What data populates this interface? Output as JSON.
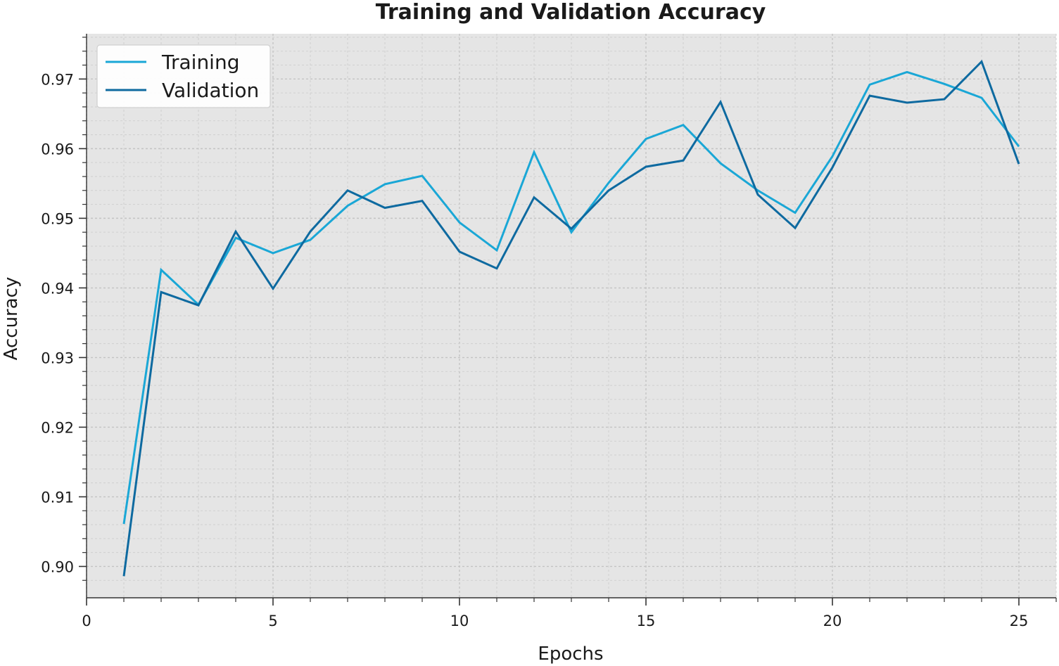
{
  "chart_data": {
    "type": "line",
    "title": "Training and Validation Accuracy",
    "xlabel": "Epochs",
    "ylabel": "Accuracy",
    "xlim": [
      0,
      26
    ],
    "ylim": [
      0.8955,
      0.9765
    ],
    "xticks": [
      0,
      5,
      10,
      15,
      20,
      25
    ],
    "xtick_labels": [
      "0",
      "5",
      "10",
      "15",
      "20",
      "25"
    ],
    "yticks": [
      0.9,
      0.91,
      0.92,
      0.93,
      0.94,
      0.95,
      0.96,
      0.97
    ],
    "ytick_labels": [
      "0.90",
      "0.91",
      "0.92",
      "0.93",
      "0.94",
      "0.95",
      "0.96",
      "0.97"
    ],
    "grid": true,
    "background": "#e5e5e5",
    "legend_position": "upper-left",
    "x": [
      1,
      2,
      3,
      4,
      5,
      6,
      7,
      8,
      9,
      10,
      11,
      12,
      13,
      14,
      15,
      16,
      17,
      18,
      19,
      20,
      21,
      22,
      23,
      24,
      25
    ],
    "series": [
      {
        "name": "Training",
        "color": "#1aa7d6",
        "values": [
          0.9061,
          0.9426,
          0.9376,
          0.9472,
          0.945,
          0.9469,
          0.9518,
          0.9549,
          0.9561,
          0.9494,
          0.9454,
          0.9595,
          0.948,
          0.9551,
          0.9614,
          0.9634,
          0.9579,
          0.954,
          0.9508,
          0.9589,
          0.9692,
          0.971,
          0.9693,
          0.9673,
          0.9603
        ]
      },
      {
        "name": "Validation",
        "color": "#0e6aa0",
        "values": [
          0.8986,
          0.9394,
          0.9375,
          0.9481,
          0.9399,
          0.9481,
          0.954,
          0.9515,
          0.9525,
          0.9452,
          0.9428,
          0.953,
          0.9485,
          0.954,
          0.9574,
          0.9583,
          0.9667,
          0.9534,
          0.9486,
          0.9573,
          0.9676,
          0.9666,
          0.9671,
          0.9725,
          0.9578
        ]
      }
    ]
  }
}
